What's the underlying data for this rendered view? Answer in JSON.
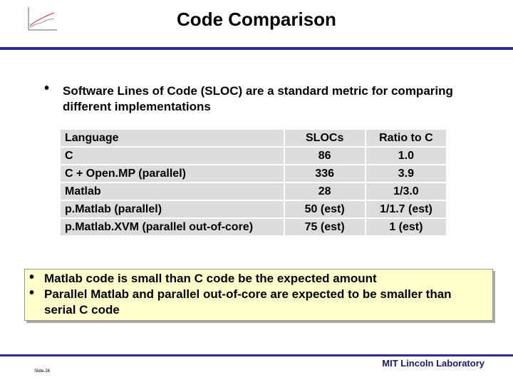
{
  "header": {
    "title": "Code Comparison"
  },
  "intro": "Software Lines of Code (SLOC) are a standard metric for comparing different implementations",
  "table": {
    "columns": [
      "Language",
      "SLOCs",
      "Ratio to C"
    ],
    "rows": [
      [
        "C",
        "86",
        "1.0"
      ],
      [
        "C + Open.MP (parallel)",
        "336",
        "3.9"
      ],
      [
        "Matlab",
        "28",
        "1/3.0"
      ],
      [
        "p.Matlab (parallel)",
        "50 (est)",
        "1/1.7 (est)"
      ],
      [
        "p.Matlab.XVM (parallel out-of-core)",
        "75 (est)",
        "1 (est)"
      ]
    ]
  },
  "callout": [
    "Matlab code is small than C code be the expected amount",
    "Parallel Matlab and parallel out-of-core are expected to be smaller than serial C code"
  ],
  "footer": {
    "organization": "MIT Lincoln Laboratory",
    "slide": "Slide-26"
  }
}
